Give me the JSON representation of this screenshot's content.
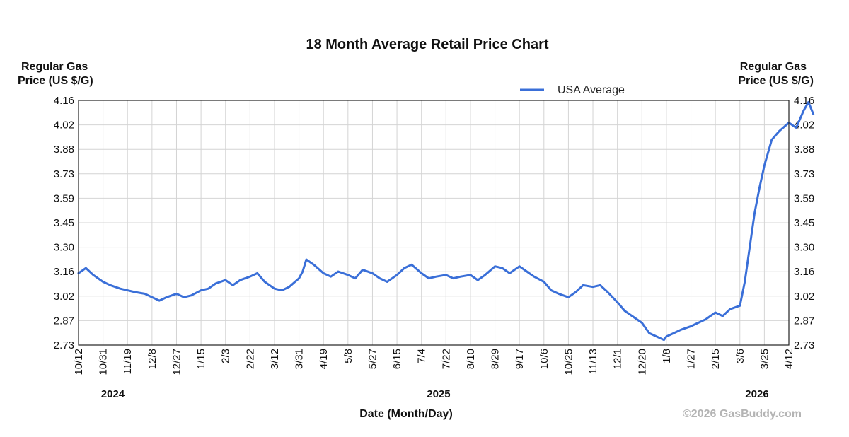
{
  "chart_data": {
    "type": "line",
    "title": "18 Month Average Retail Price Chart",
    "ylabel_left": [
      "Regular Gas",
      "Price (US $/G)"
    ],
    "ylabel_right": [
      "Regular Gas",
      "Price (US $/G)"
    ],
    "xlabel": "Date (Month/Day)",
    "ylim": [
      2.73,
      4.16
    ],
    "yticks": [
      "4.16",
      "4.02",
      "3.88",
      "3.73",
      "3.59",
      "3.45",
      "3.30",
      "3.16",
      "3.02",
      "2.87",
      "2.73"
    ],
    "xticks": [
      "10/12",
      "10/31",
      "11/19",
      "12/8",
      "12/27",
      "1/15",
      "2/3",
      "2/22",
      "3/12",
      "3/31",
      "4/19",
      "5/8",
      "5/27",
      "6/15",
      "7/4",
      "7/22",
      "8/10",
      "8/29",
      "9/17",
      "10/6",
      "10/25",
      "11/13",
      "12/1",
      "12/20",
      "1/8",
      "1/27",
      "2/15",
      "3/6",
      "3/25",
      "4/12"
    ],
    "years": [
      {
        "label": "2024",
        "tick_index": 1.4
      },
      {
        "label": "2025",
        "tick_index": 14.7
      },
      {
        "label": "2026",
        "tick_index": 27.7
      }
    ],
    "grid": true,
    "legend": {
      "position": "top-right",
      "entries": [
        "USA Average"
      ]
    },
    "credit": "©2026 GasBuddy.com",
    "series": [
      {
        "name": "USA Average",
        "color": "#3a6fd8",
        "x": [
          0,
          0.3,
          0.6,
          1.0,
          1.3,
          1.7,
          2.0,
          2.3,
          2.7,
          3.0,
          3.3,
          3.6,
          4.0,
          4.3,
          4.6,
          5.0,
          5.3,
          5.6,
          6.0,
          6.3,
          6.6,
          7.0,
          7.3,
          7.6,
          8.0,
          8.3,
          8.6,
          9.0,
          9.15,
          9.3,
          9.6,
          10.0,
          10.3,
          10.6,
          11.0,
          11.3,
          11.6,
          12.0,
          12.3,
          12.6,
          13.0,
          13.3,
          13.6,
          14.0,
          14.3,
          14.6,
          15.0,
          15.3,
          15.6,
          16.0,
          16.3,
          16.6,
          17.0,
          17.3,
          17.6,
          18.0,
          18.3,
          18.6,
          19.0,
          19.3,
          19.6,
          20.0,
          20.3,
          20.6,
          21.0,
          21.3,
          21.6,
          22.0,
          22.3,
          22.6,
          23.0,
          23.3,
          23.6,
          23.9,
          24.0,
          24.3,
          24.6,
          25.0,
          25.3,
          25.6,
          26.0,
          26.3,
          26.6,
          27.0,
          27.2,
          27.4,
          27.6,
          27.8,
          28.0,
          28.3,
          28.6,
          29.0,
          29.3,
          29.6,
          29.8,
          30.0
        ],
        "values": [
          3.15,
          3.18,
          3.14,
          3.1,
          3.08,
          3.06,
          3.05,
          3.04,
          3.03,
          3.01,
          2.99,
          3.01,
          3.03,
          3.01,
          3.02,
          3.05,
          3.06,
          3.09,
          3.11,
          3.08,
          3.11,
          3.13,
          3.15,
          3.1,
          3.06,
          3.05,
          3.07,
          3.12,
          3.16,
          3.23,
          3.2,
          3.15,
          3.13,
          3.16,
          3.14,
          3.12,
          3.17,
          3.15,
          3.12,
          3.1,
          3.14,
          3.18,
          3.2,
          3.15,
          3.12,
          3.13,
          3.14,
          3.12,
          3.13,
          3.14,
          3.11,
          3.14,
          3.19,
          3.18,
          3.15,
          3.19,
          3.16,
          3.13,
          3.1,
          3.05,
          3.03,
          3.01,
          3.04,
          3.08,
          3.07,
          3.08,
          3.04,
          2.98,
          2.93,
          2.9,
          2.86,
          2.8,
          2.78,
          2.76,
          2.78,
          2.8,
          2.82,
          2.84,
          2.86,
          2.88,
          2.92,
          2.9,
          2.94,
          2.96,
          3.1,
          3.3,
          3.5,
          3.65,
          3.78,
          3.93,
          3.98,
          4.03,
          4.0,
          4.1,
          4.15,
          4.08
        ]
      }
    ]
  }
}
